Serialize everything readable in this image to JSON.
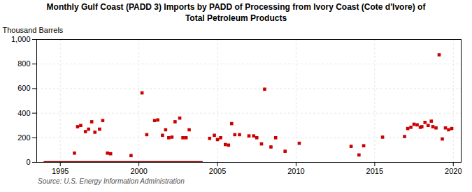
{
  "chart_data": {
    "type": "scatter",
    "title": "Monthly Gulf Coast (PADD 3) Imports by PADD of Processing from Ivory Coast (Cote d'Ivore) of\nTotal Petroleum Products",
    "ylabel": "Thousand Barrels",
    "source": "Source: U.S. Energy Information Administration",
    "x": [
      1995.9,
      1996.1,
      1996.3,
      1996.6,
      1996.8,
      1997.0,
      1997.2,
      1997.5,
      1997.7,
      1998.0,
      1998.2,
      1999.5,
      2000.2,
      2000.5,
      2001.0,
      2001.2,
      2001.5,
      2001.7,
      2001.9,
      2002.1,
      2002.3,
      2002.6,
      2002.8,
      2003.0,
      2003.2,
      2004.5,
      2004.8,
      2005.0,
      2005.2,
      2005.5,
      2005.7,
      2005.9,
      2006.1,
      2006.4,
      2007.0,
      2007.3,
      2007.5,
      2007.8,
      2008.0,
      2008.4,
      2008.7,
      2009.3,
      2010.2,
      2013.5,
      2014.0,
      2014.3,
      2015.5,
      2016.9,
      2017.1,
      2017.3,
      2017.5,
      2017.7,
      2017.9,
      2018.0,
      2018.2,
      2018.4,
      2018.6,
      2018.7,
      2018.9,
      2019.1,
      2019.3,
      2019.5,
      2019.7,
      2019.9
    ],
    "values": [
      75,
      290,
      300,
      250,
      270,
      330,
      245,
      270,
      340,
      75,
      70,
      55,
      565,
      225,
      340,
      345,
      220,
      265,
      200,
      205,
      330,
      360,
      200,
      200,
      265,
      195,
      220,
      185,
      200,
      145,
      140,
      315,
      225,
      225,
      215,
      215,
      200,
      150,
      595,
      125,
      200,
      90,
      155,
      130,
      60,
      135,
      205,
      210,
      275,
      285,
      310,
      305,
      285,
      290,
      325,
      300,
      335,
      290,
      280,
      875,
      190,
      280,
      265,
      275
    ],
    "color": "#cc0000",
    "marker": "square",
    "reference_line": {
      "x": [
        1994.0,
        2004.0
      ],
      "y": 0,
      "color": "#8b0000"
    },
    "xlim": [
      1993.5,
      2020.5
    ],
    "xticks": [
      1995,
      2000,
      2005,
      2010,
      2015,
      2020
    ],
    "ylim": [
      0,
      1000
    ],
    "yticks": [
      0,
      200,
      400,
      600,
      800,
      {
        "value": 1000,
        "label": "1,000"
      }
    ],
    "grid": true
  }
}
